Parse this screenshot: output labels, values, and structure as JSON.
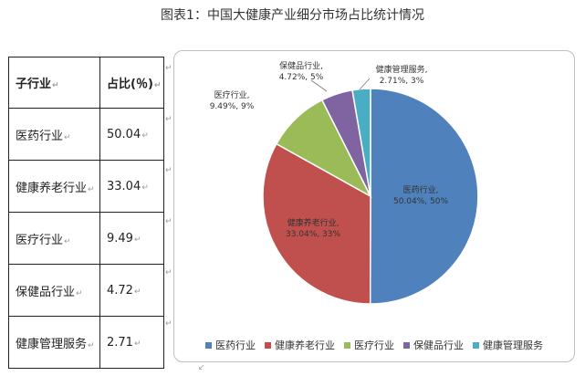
{
  "figure_title": "图表1：中国大健康产业细分市场占比统计情况",
  "table": {
    "headers": [
      "子行业",
      "占比(％)"
    ],
    "rows": [
      [
        "医药行业",
        "50.04"
      ],
      [
        "健康养老行业",
        "33.04"
      ],
      [
        "医疗行业",
        "9.49"
      ],
      [
        "保健品行业",
        "4.72"
      ],
      [
        "健康管理服务",
        "2.71"
      ]
    ]
  },
  "chart_data": {
    "type": "pie",
    "title": "",
    "categories": [
      "医药行业",
      "健康养老行业",
      "医疗行业",
      "保健品行业",
      "健康管理服务"
    ],
    "values": [
      50.04,
      33.04,
      9.49,
      4.72,
      2.71
    ],
    "data_labels": [
      [
        "医药行业,",
        "50.04%, 50%"
      ],
      [
        "健康养老行业,",
        "33.04%, 33%"
      ],
      [
        "医疗行业,",
        "9.49%, 9%"
      ],
      [
        "保健品行业,",
        "4.72%, 5%"
      ],
      [
        "健康管理服务,",
        "2.71%, 3%"
      ]
    ],
    "colors": [
      "#4f81bd",
      "#c0504d",
      "#9bbb59",
      "#8064a2",
      "#4bacc6"
    ],
    "start_angle_deg": 0,
    "direction": "clockwise",
    "legend_position": "bottom"
  },
  "marks": {
    "paragraph": "↵",
    "arrow": "↙"
  }
}
